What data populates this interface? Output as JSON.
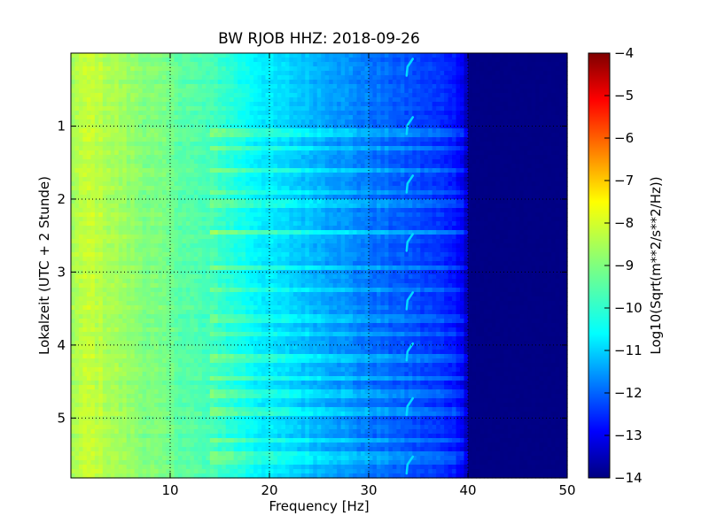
{
  "chart_data": {
    "type": "heatmap",
    "title": "BW RJOB HHZ: 2018-09-26",
    "xlabel": "Frequency [Hz]",
    "ylabel": "Lokalzeit (UTC + 2 Stunde)",
    "xlim": [
      0,
      50
    ],
    "ylim": [
      0,
      5.82
    ],
    "y_inverted": true,
    "x_ticks": [
      10,
      20,
      30,
      40,
      50
    ],
    "y_ticks": [
      1,
      2,
      3,
      4,
      5
    ],
    "grid": true,
    "colormap": "jet",
    "colorbar": {
      "label": "Log10(Sqrt(m**2/s**2/Hz))",
      "range": [
        -14,
        -4
      ],
      "ticks": [
        -4,
        -5,
        -6,
        -7,
        -8,
        -9,
        -10,
        -11,
        -12,
        -13,
        -14
      ]
    },
    "z_profile_by_frequency": {
      "frequency_hz": [
        0,
        2,
        5,
        10,
        15,
        18,
        20,
        25,
        30,
        33,
        35,
        38,
        39.5,
        40,
        42,
        50
      ],
      "log_value": [
        -8.6,
        -8.3,
        -8.7,
        -9.2,
        -9.7,
        -10.2,
        -10.5,
        -11.0,
        -11.6,
        -11.9,
        -12.1,
        -12.4,
        -12.8,
        -13.8,
        -14.0,
        -14.0
      ]
    },
    "bright_bands_hours": [
      1.08,
      1.3,
      1.6,
      1.9,
      2.05,
      2.45,
      2.95,
      3.25,
      3.62,
      3.85,
      4.2,
      4.45,
      4.66,
      4.9,
      5.3,
      5.52,
      5.6
    ],
    "strongest_band_hour": 2.45,
    "tonal_line_hz": 34.0,
    "tonal_line_events_hours": [
      0.2,
      1.0,
      1.8,
      2.6,
      3.4,
      4.1,
      4.85,
      5.65
    ]
  },
  "colors": {
    "jet_stops": [
      "#00007f",
      "#0000ff",
      "#007fff",
      "#00ffff",
      "#7fff7f",
      "#ffff00",
      "#ff7f00",
      "#ff0000",
      "#7f0000"
    ]
  }
}
